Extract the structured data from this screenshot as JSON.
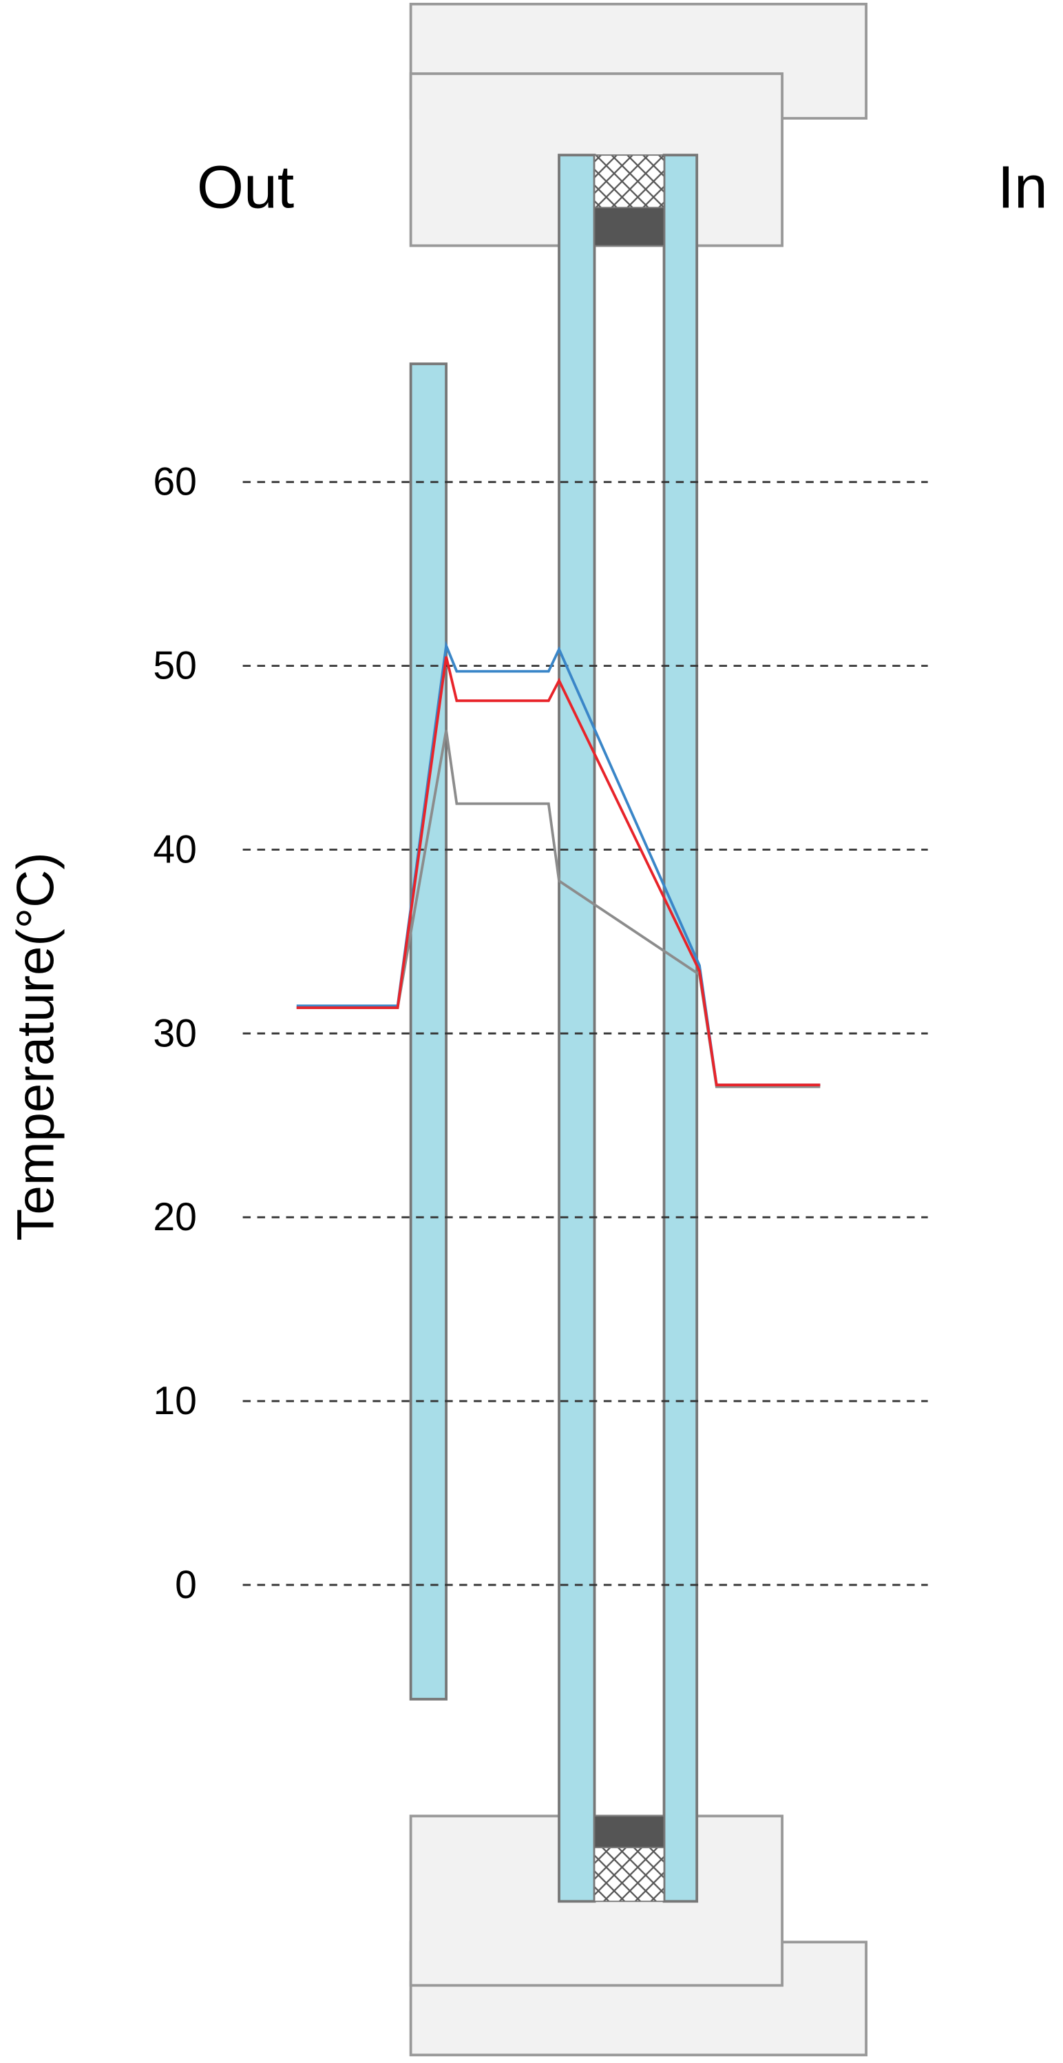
{
  "chart_data": {
    "type": "line",
    "side_labels": [
      "Out",
      "In"
    ],
    "y_label": "Temperature(°C)",
    "x": [
      0,
      77,
      114,
      122,
      192,
      200,
      307,
      320,
      399
    ],
    "xlim": [
      -41,
      481
    ],
    "ylim": [
      0,
      60
    ],
    "yticks": [
      0,
      10,
      20,
      30,
      40,
      50,
      60
    ],
    "grid": true,
    "series": [
      {
        "color": "#8c8c8c",
        "values": [
          31.4,
          31.4,
          46.5,
          42.5,
          42.5,
          38.3,
          33.2,
          27.1,
          27.1
        ]
      },
      {
        "color": "#3a86c8",
        "values": [
          31.5,
          31.5,
          51.1,
          49.7,
          49.7,
          50.9,
          33.7,
          27.2,
          27.2
        ]
      },
      {
        "color": "#e8242a",
        "values": [
          31.4,
          31.4,
          50.5,
          48.1,
          48.1,
          49.2,
          33.4,
          27.2,
          27.2
        ]
      }
    ]
  }
}
